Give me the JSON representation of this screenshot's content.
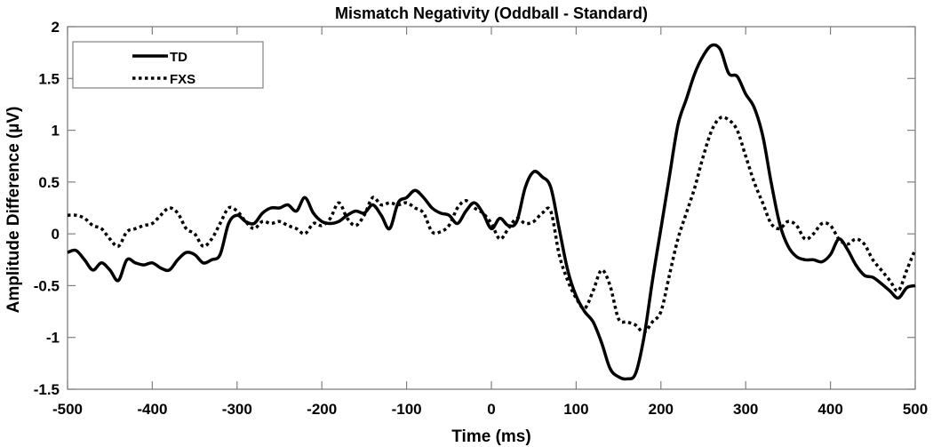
{
  "chart_data": {
    "type": "line",
    "title": "Mismatch Negativity (Oddball - Standard)",
    "xlabel": "Time (ms)",
    "ylabel": "Amplitude Difference (µV)",
    "xlim": [
      -500,
      500
    ],
    "ylim": [
      -1.5,
      2
    ],
    "xticks": [
      -500,
      -400,
      -300,
      -200,
      -100,
      0,
      100,
      200,
      300,
      400,
      500
    ],
    "xtick_labels": [
      "-500",
      "-400",
      "-300",
      "-200",
      "-100",
      "0",
      "100",
      "200",
      "300",
      "400",
      "500"
    ],
    "yticks": [
      -1.5,
      -1,
      -0.5,
      0,
      0.5,
      1,
      1.5,
      2
    ],
    "ytick_labels": [
      "-1.5",
      "-1",
      "-0.5",
      "0",
      "0.5",
      "1",
      "1.5",
      "2"
    ],
    "grid": false,
    "legend_position": "top-left",
    "x": [
      -500,
      -490,
      -480,
      -470,
      -460,
      -450,
      -440,
      -430,
      -420,
      -410,
      -400,
      -390,
      -380,
      -370,
      -360,
      -350,
      -340,
      -330,
      -320,
      -310,
      -300,
      -290,
      -280,
      -270,
      -260,
      -250,
      -240,
      -230,
      -220,
      -210,
      -200,
      -190,
      -180,
      -170,
      -160,
      -150,
      -140,
      -130,
      -120,
      -110,
      -100,
      -90,
      -80,
      -70,
      -60,
      -50,
      -40,
      -30,
      -20,
      -10,
      0,
      10,
      20,
      30,
      40,
      50,
      60,
      70,
      80,
      90,
      100,
      110,
      120,
      130,
      140,
      150,
      160,
      170,
      180,
      190,
      200,
      210,
      220,
      230,
      240,
      250,
      260,
      270,
      280,
      290,
      300,
      310,
      320,
      330,
      340,
      350,
      360,
      370,
      380,
      390,
      400,
      410,
      420,
      430,
      440,
      450,
      460,
      470,
      480,
      490,
      500
    ],
    "series": [
      {
        "name": "TD",
        "style": "solid",
        "color": "#000000",
        "values": [
          -0.18,
          -0.16,
          -0.25,
          -0.35,
          -0.28,
          -0.35,
          -0.45,
          -0.25,
          -0.28,
          -0.3,
          -0.28,
          -0.33,
          -0.35,
          -0.25,
          -0.18,
          -0.2,
          -0.28,
          -0.25,
          -0.2,
          0.1,
          0.18,
          0.12,
          0.1,
          0.2,
          0.25,
          0.25,
          0.28,
          0.22,
          0.35,
          0.2,
          0.12,
          0.1,
          0.12,
          0.18,
          0.22,
          0.2,
          0.28,
          0.18,
          0.05,
          0.3,
          0.35,
          0.42,
          0.35,
          0.25,
          0.2,
          0.18,
          0.1,
          0.22,
          0.3,
          0.2,
          0.05,
          0.15,
          0.08,
          0.12,
          0.45,
          0.6,
          0.55,
          0.45,
          0.05,
          -0.35,
          -0.6,
          -0.75,
          -0.85,
          -1.05,
          -1.3,
          -1.38,
          -1.4,
          -1.35,
          -1.0,
          -0.45,
          0.05,
          0.55,
          1.05,
          1.3,
          1.55,
          1.72,
          1.82,
          1.78,
          1.55,
          1.52,
          1.35,
          1.22,
          0.95,
          0.5,
          0.1,
          -0.12,
          -0.22,
          -0.25,
          -0.25,
          -0.27,
          -0.2,
          -0.05,
          -0.15,
          -0.3,
          -0.4,
          -0.42,
          -0.48,
          -0.55,
          -0.62,
          -0.52,
          -0.5
        ]
      },
      {
        "name": "FXS",
        "style": "dotted",
        "color": "#000000",
        "values": [
          0.18,
          0.18,
          0.15,
          0.08,
          0.05,
          -0.05,
          -0.12,
          0.02,
          0.05,
          0.08,
          0.1,
          0.18,
          0.25,
          0.2,
          0.05,
          0.0,
          -0.12,
          -0.05,
          0.1,
          0.25,
          0.22,
          0.12,
          0.05,
          0.12,
          0.1,
          0.12,
          0.08,
          0.05,
          0.0,
          0.1,
          0.08,
          0.15,
          0.3,
          0.15,
          0.08,
          0.18,
          0.35,
          0.28,
          0.3,
          0.28,
          0.3,
          0.25,
          0.2,
          0.02,
          0.02,
          0.08,
          0.25,
          0.32,
          0.25,
          0.2,
          0.1,
          -0.05,
          0.05,
          0.15,
          0.1,
          0.12,
          0.2,
          0.22,
          -0.2,
          -0.45,
          -0.62,
          -0.72,
          -0.55,
          -0.35,
          -0.5,
          -0.82,
          -0.85,
          -0.88,
          -0.95,
          -0.85,
          -0.75,
          -0.4,
          -0.05,
          0.2,
          0.45,
          0.75,
          1.0,
          1.12,
          1.1,
          1.0,
          0.75,
          0.5,
          0.3,
          0.1,
          0.05,
          0.12,
          0.08,
          -0.05,
          0.0,
          0.1,
          0.08,
          -0.05,
          -0.1,
          -0.05,
          -0.1,
          -0.25,
          -0.35,
          -0.45,
          -0.55,
          -0.35,
          -0.15
        ]
      }
    ]
  },
  "colors": {
    "axis": "#808080",
    "line": "#000000",
    "background": "#ffffff"
  }
}
